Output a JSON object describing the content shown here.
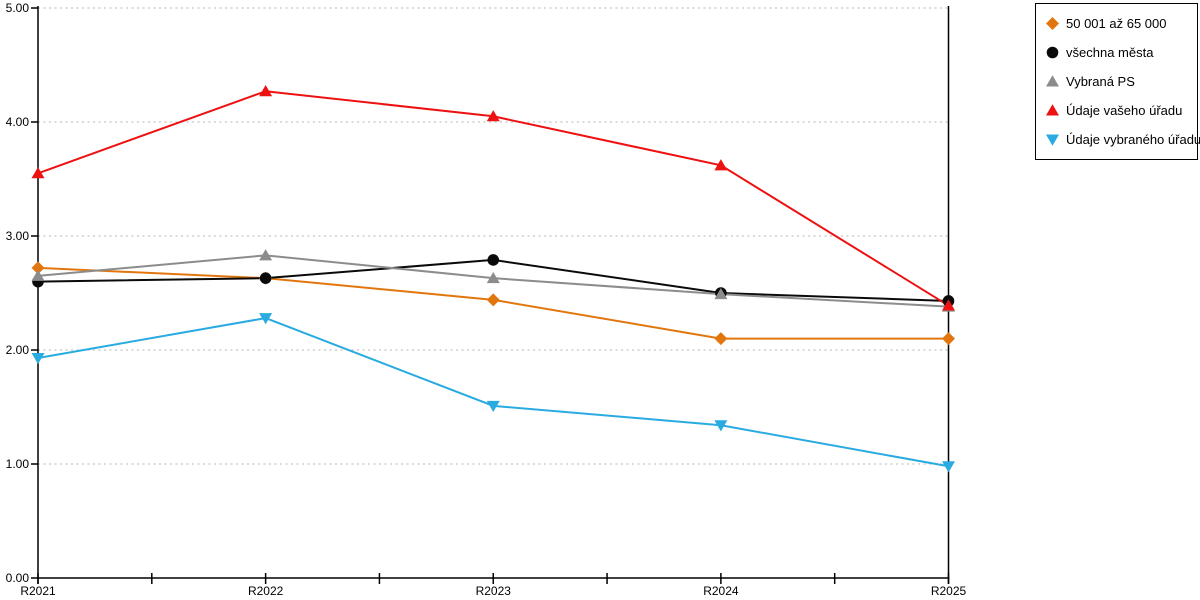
{
  "chart_data": {
    "type": "line",
    "title": "",
    "xlabel": "",
    "ylabel": "",
    "x_categories": [
      "R2021",
      "R2022",
      "R2023",
      "R2024",
      "R2025"
    ],
    "ylim": [
      0,
      5
    ],
    "y_tick_labels": [
      "0.00",
      "1.00",
      "2.00",
      "3.00",
      "4.00",
      "5.00"
    ],
    "grid": "horizontal-dotted",
    "legend_position": "outside-top-right",
    "series": [
      {
        "name": "50 001 až 65 000",
        "marker": "diamond",
        "color": "#e2760e",
        "values": [
          2.72,
          2.63,
          2.44,
          2.1,
          2.1
        ]
      },
      {
        "name": "všechna města",
        "marker": "circle",
        "color": "#0a0a0a",
        "values": [
          2.6,
          2.63,
          2.79,
          2.5,
          2.43
        ]
      },
      {
        "name": "Vybraná PS",
        "marker": "triangle-up",
        "color": "#8c8c8c",
        "values": [
          2.65,
          2.83,
          2.63,
          2.49,
          2.38
        ]
      },
      {
        "name": "Údaje vašeho úřadu",
        "marker": "triangle-up",
        "color": "#ee1111",
        "values": [
          3.55,
          4.27,
          4.05,
          3.62,
          2.39
        ]
      },
      {
        "name": "Údaje vybraného úřadu",
        "marker": "triangle-down",
        "color": "#29abe2",
        "values": [
          1.93,
          2.28,
          1.51,
          1.34,
          0.98
        ]
      }
    ],
    "colors": {
      "gridline": "#b5b5b5",
      "axis": "#000000",
      "background": "#ffffff"
    }
  }
}
